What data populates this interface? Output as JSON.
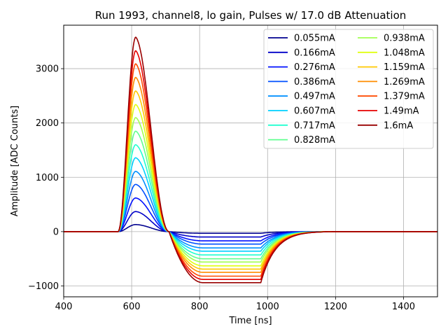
{
  "chart_data": {
    "type": "line",
    "title": "Run 1993, channel8, lo gain, Pulses w/ 17.0 dB Attenuation",
    "xlabel": "Time [ns]",
    "ylabel": "Amplitude [ADC Counts]",
    "xlim": [
      400,
      1500
    ],
    "ylim": [
      -1200,
      3800
    ],
    "xticks": [
      400,
      600,
      800,
      1000,
      1200,
      1400
    ],
    "yticks": [
      -1000,
      0,
      1000,
      2000,
      3000
    ],
    "ytick_labels": [
      "−1000",
      "0",
      "1000",
      "2000",
      "3000"
    ],
    "grid": true,
    "legend_position": "upper right",
    "legend_columns": 2,
    "pulse_shape": {
      "baseline_until": 560,
      "peak_time": 612,
      "zero_cross": 710,
      "undershoot_plateau_end": 980,
      "recovery_end": 1200
    },
    "series": [
      {
        "name": "0.055mA",
        "color": "#00008f",
        "peak": 130,
        "undershoot": -30
      },
      {
        "name": "0.166mA",
        "color": "#0000c8",
        "peak": 370,
        "undershoot": -100
      },
      {
        "name": "0.276mA",
        "color": "#0010ff",
        "peak": 620,
        "undershoot": -170
      },
      {
        "name": "0.386mA",
        "color": "#0050ff",
        "peak": 870,
        "undershoot": -230
      },
      {
        "name": "0.497mA",
        "color": "#0090ff",
        "peak": 1110,
        "undershoot": -300
      },
      {
        "name": "0.607mA",
        "color": "#00d0ff",
        "peak": 1360,
        "undershoot": -360
      },
      {
        "name": "0.717mA",
        "color": "#20ffd0",
        "peak": 1600,
        "undershoot": -430
      },
      {
        "name": "0.828mA",
        "color": "#60ff90",
        "peak": 1850,
        "undershoot": -500
      },
      {
        "name": "0.938mA",
        "color": "#a0ff50",
        "peak": 2100,
        "undershoot": -560
      },
      {
        "name": "1.048mA",
        "color": "#e0ff10",
        "peak": 2340,
        "undershoot": -630
      },
      {
        "name": "1.159mA",
        "color": "#ffc800",
        "peak": 2590,
        "undershoot": -690
      },
      {
        "name": "1.269mA",
        "color": "#ff8c00",
        "peak": 2840,
        "undershoot": -750
      },
      {
        "name": "1.379mA",
        "color": "#ff4a00",
        "peak": 3090,
        "undershoot": -820
      },
      {
        "name": "1.49mA",
        "color": "#e60000",
        "peak": 3330,
        "undershoot": -880
      },
      {
        "name": "1.6mA",
        "color": "#9a0000",
        "peak": 3580,
        "undershoot": -940
      }
    ]
  }
}
